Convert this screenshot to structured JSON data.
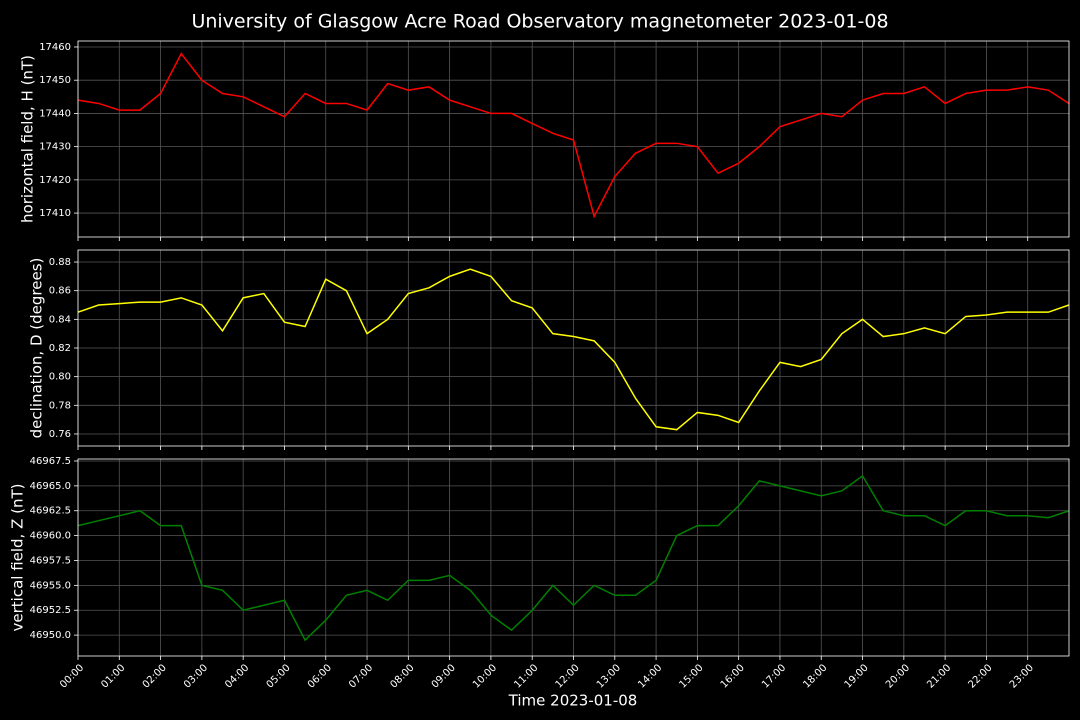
{
  "title": "University of Glasgow Acre Road Observatory magnetometer 2023-01-08",
  "xlabel": "Time 2023-01-08",
  "xlim": [
    0,
    24
  ],
  "xticks": [
    {
      "value": 0,
      "label": "00:00"
    },
    {
      "value": 1,
      "label": "01:00"
    },
    {
      "value": 2,
      "label": "02:00"
    },
    {
      "value": 3,
      "label": "03:00"
    },
    {
      "value": 4,
      "label": "04:00"
    },
    {
      "value": 5,
      "label": "05:00"
    },
    {
      "value": 6,
      "label": "06:00"
    },
    {
      "value": 7,
      "label": "07:00"
    },
    {
      "value": 8,
      "label": "08:00"
    },
    {
      "value": 9,
      "label": "09:00"
    },
    {
      "value": 10,
      "label": "10:00"
    },
    {
      "value": 11,
      "label": "11:00"
    },
    {
      "value": 12,
      "label": "12:00"
    },
    {
      "value": 13,
      "label": "13:00"
    },
    {
      "value": 14,
      "label": "14:00"
    },
    {
      "value": 15,
      "label": "15:00"
    },
    {
      "value": 16,
      "label": "16:00"
    },
    {
      "value": 17,
      "label": "17:00"
    },
    {
      "value": 18,
      "label": "18:00"
    },
    {
      "value": 19,
      "label": "19:00"
    },
    {
      "value": 20,
      "label": "20:00"
    },
    {
      "value": 21,
      "label": "21:00"
    },
    {
      "value": 22,
      "label": "22:00"
    },
    {
      "value": 23,
      "label": "23:00"
    }
  ],
  "grid": true,
  "chart_data": [
    {
      "type": "line",
      "ylabel": "horizontal field, H (nT)",
      "ylim": [
        17402.8,
        17461.8
      ],
      "yticks": [
        17410,
        17420,
        17430,
        17440,
        17450,
        17460
      ],
      "x": [
        0,
        0.5,
        1,
        1.5,
        2,
        2.5,
        3,
        3.5,
        4,
        4.5,
        5,
        5.5,
        6,
        6.5,
        7,
        7.5,
        8,
        8.5,
        9,
        9.5,
        10,
        10.5,
        11,
        11.5,
        12,
        12.5,
        13,
        13.5,
        14,
        14.5,
        15,
        15.5,
        16,
        16.5,
        17,
        17.5,
        18,
        18.5,
        19,
        19.5,
        20,
        20.5,
        21,
        21.5,
        22,
        22.5,
        23,
        23.5,
        24
      ],
      "series": [
        {
          "color": "#ff0000",
          "values": [
            17444,
            17443,
            17441,
            17441,
            17446,
            17458,
            17450,
            17446,
            17445,
            17442,
            17439,
            17446,
            17443,
            17443,
            17441,
            17449,
            17447,
            17448,
            17444,
            17442,
            17440,
            17440,
            17437,
            17434,
            17432,
            17409,
            17421,
            17428,
            17431,
            17431,
            17430,
            17422,
            17425,
            17430,
            17436,
            17438,
            17440,
            17439,
            17444,
            17446,
            17446,
            17448,
            17443,
            17446,
            17447,
            17447,
            17448,
            17447,
            17443
          ]
        }
      ]
    },
    {
      "type": "line",
      "ylabel": "declination, D (degrees)",
      "ylim": [
        0.7516,
        0.8884
      ],
      "yticks": [
        0.76,
        0.78,
        {
          "value": 0.8,
          "label": "0.80"
        },
        0.82,
        0.84,
        0.86,
        0.88
      ],
      "x": [
        0,
        0.5,
        1,
        1.5,
        2,
        2.5,
        3,
        3.5,
        4,
        4.5,
        5,
        5.5,
        6,
        6.5,
        7,
        7.5,
        8,
        8.5,
        9,
        9.5,
        10,
        10.5,
        11,
        11.5,
        12,
        12.5,
        13,
        13.5,
        14,
        14.5,
        15,
        15.5,
        16,
        16.5,
        17,
        17.5,
        18,
        18.5,
        19,
        19.5,
        20,
        20.5,
        21,
        21.5,
        22,
        22.5,
        23,
        23.5,
        24
      ],
      "series": [
        {
          "color": "#ffff00",
          "values": [
            0.845,
            0.85,
            0.851,
            0.852,
            0.852,
            0.855,
            0.85,
            0.832,
            0.855,
            0.858,
            0.838,
            0.835,
            0.868,
            0.86,
            0.83,
            0.84,
            0.858,
            0.862,
            0.87,
            0.875,
            0.87,
            0.853,
            0.848,
            0.83,
            0.828,
            0.825,
            0.81,
            0.785,
            0.765,
            0.763,
            0.775,
            0.773,
            0.768,
            0.79,
            0.81,
            0.807,
            0.812,
            0.83,
            0.84,
            0.828,
            0.83,
            0.834,
            0.83,
            0.842,
            0.843,
            0.845,
            0.845,
            0.845,
            0.85
          ]
        }
      ]
    },
    {
      "type": "line",
      "ylabel": "vertical field, Z (nT)",
      "ylim": [
        46947.9,
        46967.7
      ],
      "yticks": [
        {
          "value": 46950,
          "label": "46950.0"
        },
        {
          "value": 46952.5,
          "label": "46952.5"
        },
        {
          "value": 46955,
          "label": "46955.0"
        },
        {
          "value": 46957.5,
          "label": "46957.5"
        },
        {
          "value": 46960,
          "label": "46960.0"
        },
        {
          "value": 46962.5,
          "label": "46962.5"
        },
        {
          "value": 46965,
          "label": "46965.0"
        },
        {
          "value": 46967.5,
          "label": "46967.5"
        }
      ],
      "x": [
        0,
        0.5,
        1,
        1.5,
        2,
        2.5,
        3,
        3.5,
        4,
        4.5,
        5,
        5.5,
        6,
        6.5,
        7,
        7.5,
        8,
        8.5,
        9,
        9.5,
        10,
        10.5,
        11,
        11.5,
        12,
        12.5,
        13,
        13.5,
        14,
        14.5,
        15,
        15.5,
        16,
        16.5,
        17,
        17.5,
        18,
        18.5,
        19,
        19.5,
        20,
        20.5,
        21,
        21.5,
        22,
        22.5,
        23,
        23.5,
        24
      ],
      "series": [
        {
          "color": "#008000",
          "values": [
            46961,
            46961.5,
            46962,
            46962.5,
            46961,
            46961,
            46955,
            46954.5,
            46952.5,
            46953,
            46953.5,
            46949.5,
            46951.5,
            46954,
            46954.5,
            46953.5,
            46955.5,
            46955.5,
            46956,
            46954.5,
            46952,
            46950.5,
            46952.5,
            46955,
            46953,
            46955,
            46954,
            46954,
            46955.5,
            46960,
            46961,
            46961,
            46963,
            46965.5,
            46965,
            46964.5,
            46964,
            46964.5,
            46966,
            46962.5,
            46962,
            46962,
            46961,
            46962.5,
            46962.5,
            46962,
            46962,
            46961.8,
            46962.5
          ]
        }
      ]
    }
  ]
}
